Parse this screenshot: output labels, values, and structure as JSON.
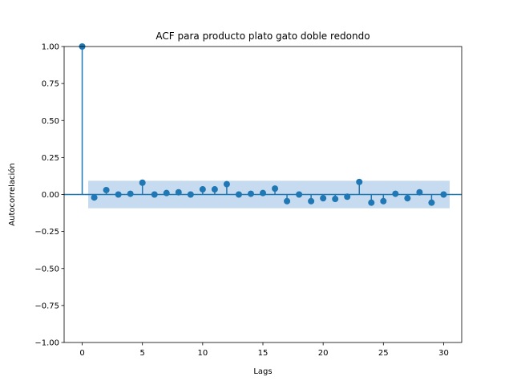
{
  "chart_data": {
    "type": "scatter",
    "title": "ACF para producto plato gato doble redondo",
    "xlabel": "Lags",
    "ylabel": "Autocorrelación",
    "xlim": [
      -1.5,
      31.5
    ],
    "ylim": [
      -1.0,
      1.0
    ],
    "xticks": [
      0,
      5,
      10,
      15,
      20,
      25,
      30
    ],
    "xtick_labels": [
      "0",
      "5",
      "10",
      "15",
      "20",
      "25",
      "30"
    ],
    "yticks": [
      -1.0,
      -0.75,
      -0.5,
      -0.25,
      0.0,
      0.25,
      0.5,
      0.75,
      1.0
    ],
    "ytick_labels": [
      "−1.00",
      "−0.75",
      "−0.50",
      "−0.25",
      "0.00",
      "0.25",
      "0.50",
      "0.75",
      "1.00"
    ],
    "grid": false,
    "colors": {
      "series": "#1f77b4",
      "band": "#c6dbef"
    },
    "series": [
      {
        "x": [
          0,
          1,
          2,
          3,
          4,
          5,
          6,
          7,
          8,
          9,
          10,
          11,
          12,
          13,
          14,
          15,
          16,
          17,
          18,
          19,
          20,
          21,
          22,
          23,
          24,
          25,
          26,
          27,
          28,
          29,
          30
        ],
        "values": [
          1.0,
          -0.02,
          0.03,
          0.0,
          0.005,
          0.08,
          0.0,
          0.01,
          0.015,
          0.0,
          0.035,
          0.035,
          0.07,
          0.0,
          0.005,
          0.01,
          0.04,
          -0.045,
          0.0,
          -0.045,
          -0.025,
          -0.03,
          -0.015,
          0.085,
          -0.055,
          -0.045,
          0.005,
          -0.025,
          0.015,
          -0.055,
          0.0
        ]
      }
    ],
    "confidence_band": {
      "x": [
        0.5,
        30.5
      ],
      "lower": -0.093,
      "upper": 0.093
    }
  }
}
